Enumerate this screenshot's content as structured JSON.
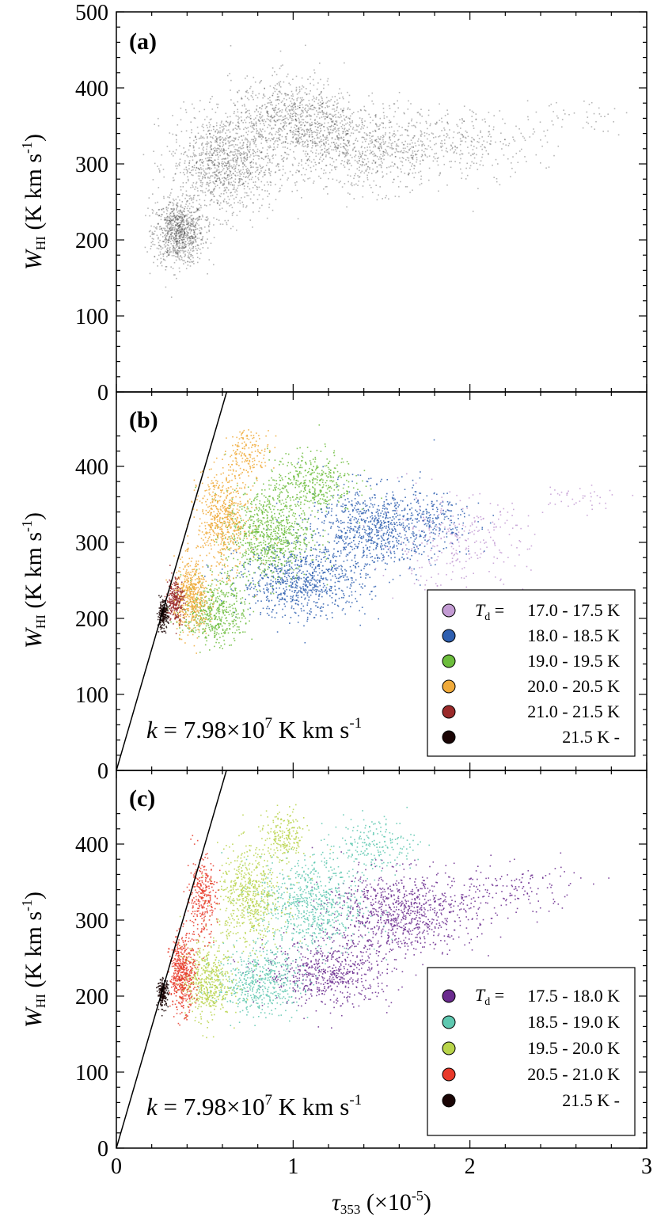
{
  "chart_data": [
    {
      "panel": "(a)",
      "type": "scatter",
      "ylabel": "W_HI (K km s^-1)",
      "ylabel_parts": {
        "main": "W",
        "sub": "HI",
        "rest": " (K km s",
        "exp": "-1",
        "close": ")"
      },
      "xlim": [
        0,
        3
      ],
      "ylim": [
        0,
        500
      ],
      "yticks": [
        "0",
        "100",
        "200",
        "300",
        "400",
        "500"
      ],
      "series": [
        {
          "color": "#2a2a2a",
          "clusters": [
            {
              "cx": 0.35,
              "cy": 210,
              "wx": 0.12,
              "wy": 35,
              "n": 900
            },
            {
              "cx": 0.6,
              "cy": 300,
              "wx": 0.25,
              "wy": 55,
              "n": 1100
            },
            {
              "cx": 1.0,
              "cy": 360,
              "wx": 0.3,
              "wy": 45,
              "n": 900
            },
            {
              "cx": 1.4,
              "cy": 320,
              "wx": 0.4,
              "wy": 45,
              "n": 800
            },
            {
              "cx": 2.0,
              "cy": 330,
              "wx": 0.35,
              "wy": 35,
              "n": 250
            },
            {
              "cx": 2.6,
              "cy": 365,
              "wx": 0.25,
              "wy": 20,
              "n": 40
            }
          ]
        }
      ]
    },
    {
      "panel": "(b)",
      "type": "scatter",
      "ylabel": "W_HI (K km s^-1)",
      "ylabel_parts": {
        "main": "W",
        "sub": "HI",
        "rest": " (K km s",
        "exp": "-1",
        "close": ")"
      },
      "xlim": [
        0,
        3
      ],
      "ylim": [
        0,
        500
      ],
      "yticks": [
        "0",
        "100",
        "200",
        "300",
        "400"
      ],
      "fit_line": {
        "k": 798,
        "note": "W_HI = k × tau353"
      },
      "annotation": {
        "prefix": "k",
        "eq": " = 7.98×10",
        "exp": "7",
        "unit": " K km s",
        "unit_exp": "-1"
      },
      "legend": {
        "label_var": "T",
        "label_sub": "d",
        "label_eq": " = ",
        "entries": [
          {
            "label": "17.0 - 17.5 K",
            "color": "#c39bd3"
          },
          {
            "label": "18.0 - 18.5 K",
            "color": "#2e5fb0"
          },
          {
            "label": "19.0 - 19.5 K",
            "color": "#6cbd3c"
          },
          {
            "label": "20.0 - 20.5 K",
            "color": "#f0aa3a"
          },
          {
            "label": "21.0 - 21.5 K",
            "color": "#9a2a2a"
          },
          {
            "label": "21.5 K -",
            "color": "#1a0505"
          }
        ]
      },
      "series": [
        {
          "name": "17.0 - 17.5 K",
          "color": "#c39bd3",
          "clusters": [
            {
              "cx": 1.9,
              "cy": 300,
              "wx": 0.35,
              "wy": 50,
              "n": 300
            },
            {
              "cx": 2.6,
              "cy": 360,
              "wx": 0.25,
              "wy": 15,
              "n": 40
            }
          ]
        },
        {
          "name": "18.0 - 18.5 K",
          "color": "#2e5fb0",
          "clusters": [
            {
              "cx": 1.05,
              "cy": 250,
              "wx": 0.3,
              "wy": 40,
              "n": 800
            },
            {
              "cx": 1.45,
              "cy": 320,
              "wx": 0.3,
              "wy": 45,
              "n": 800
            },
            {
              "cx": 1.8,
              "cy": 330,
              "wx": 0.2,
              "wy": 30,
              "n": 150
            }
          ]
        },
        {
          "name": "19.0 - 19.5 K",
          "color": "#6cbd3c",
          "clusters": [
            {
              "cx": 0.55,
              "cy": 210,
              "wx": 0.15,
              "wy": 35,
              "n": 500
            },
            {
              "cx": 0.85,
              "cy": 310,
              "wx": 0.2,
              "wy": 50,
              "n": 800
            },
            {
              "cx": 1.1,
              "cy": 380,
              "wx": 0.2,
              "wy": 35,
              "n": 400
            }
          ]
        },
        {
          "name": "20.0 - 20.5 K",
          "color": "#f0aa3a",
          "clusters": [
            {
              "cx": 0.42,
              "cy": 230,
              "wx": 0.08,
              "wy": 40,
              "n": 500
            },
            {
              "cx": 0.6,
              "cy": 330,
              "wx": 0.12,
              "wy": 55,
              "n": 600
            },
            {
              "cx": 0.75,
              "cy": 420,
              "wx": 0.1,
              "wy": 25,
              "n": 150
            }
          ]
        },
        {
          "name": "21.0 - 21.5 K",
          "color": "#9a2a2a",
          "clusters": [
            {
              "cx": 0.33,
              "cy": 225,
              "wx": 0.04,
              "wy": 25,
              "n": 250
            }
          ]
        },
        {
          "name": "21.5 K -",
          "color": "#1a0505",
          "clusters": [
            {
              "cx": 0.26,
              "cy": 205,
              "wx": 0.025,
              "wy": 15,
              "n": 200
            }
          ]
        }
      ]
    },
    {
      "panel": "(c)",
      "type": "scatter",
      "xlabel": "τ353 (×10^-5)",
      "xlabel_parts": {
        "main": "τ",
        "sub": "353",
        "rest": " (×10",
        "exp": "-5",
        "close": ")"
      },
      "ylabel": "W_HI (K km s^-1)",
      "ylabel_parts": {
        "main": "W",
        "sub": "HI",
        "rest": " (K km s",
        "exp": "-1",
        "close": ")"
      },
      "xlim": [
        0,
        3
      ],
      "ylim": [
        0,
        500
      ],
      "xticks": [
        "0",
        "1",
        "2",
        "3"
      ],
      "yticks": [
        "0",
        "100",
        "200",
        "300",
        "400"
      ],
      "fit_line": {
        "k": 798,
        "note": "W_HI = k × tau353"
      },
      "annotation": {
        "prefix": "k",
        "eq": " = 7.98×10",
        "exp": "7",
        "unit": " K km s",
        "unit_exp": "-1"
      },
      "legend": {
        "label_var": "T",
        "label_sub": "d",
        "label_eq": " = ",
        "entries": [
          {
            "label": "17.5 - 18.0 K",
            "color": "#6a2a8e"
          },
          {
            "label": "18.5 - 19.0 K",
            "color": "#5ec8b0"
          },
          {
            "label": "19.5 - 20.0 K",
            "color": "#b8d44a"
          },
          {
            "label": "20.5 - 21.0 K",
            "color": "#e8392a"
          },
          {
            "label": "21.5 K -",
            "color": "#1a0505"
          }
        ]
      },
      "series": [
        {
          "name": "17.5 - 18.0 K",
          "color": "#6a2a8e",
          "clusters": [
            {
              "cx": 1.2,
              "cy": 230,
              "wx": 0.3,
              "wy": 35,
              "n": 600
            },
            {
              "cx": 1.6,
              "cy": 310,
              "wx": 0.35,
              "wy": 45,
              "n": 900
            },
            {
              "cx": 2.2,
              "cy": 340,
              "wx": 0.35,
              "wy": 30,
              "n": 150
            }
          ]
        },
        {
          "name": "18.5 - 19.0 K",
          "color": "#5ec8b0",
          "clusters": [
            {
              "cx": 0.8,
              "cy": 220,
              "wx": 0.2,
              "wy": 35,
              "n": 500
            },
            {
              "cx": 1.1,
              "cy": 320,
              "wx": 0.25,
              "wy": 55,
              "n": 700
            },
            {
              "cx": 1.45,
              "cy": 400,
              "wx": 0.2,
              "wy": 30,
              "n": 200
            }
          ]
        },
        {
          "name": "19.5 - 20.0 K",
          "color": "#b8d44a",
          "clusters": [
            {
              "cx": 0.5,
              "cy": 220,
              "wx": 0.12,
              "wy": 40,
              "n": 500
            },
            {
              "cx": 0.75,
              "cy": 330,
              "wx": 0.15,
              "wy": 55,
              "n": 600
            },
            {
              "cx": 0.95,
              "cy": 410,
              "wx": 0.1,
              "wy": 30,
              "n": 200
            }
          ]
        },
        {
          "name": "20.5 - 21.0 K",
          "color": "#e8392a",
          "clusters": [
            {
              "cx": 0.37,
              "cy": 230,
              "wx": 0.06,
              "wy": 40,
              "n": 500
            },
            {
              "cx": 0.48,
              "cy": 330,
              "wx": 0.07,
              "wy": 45,
              "n": 300
            }
          ]
        },
        {
          "name": "21.5 K -",
          "color": "#1a0505",
          "clusters": [
            {
              "cx": 0.26,
              "cy": 205,
              "wx": 0.025,
              "wy": 15,
              "n": 200
            }
          ]
        }
      ]
    }
  ],
  "colors": {
    "axis": "#000000",
    "background": "#ffffff"
  }
}
